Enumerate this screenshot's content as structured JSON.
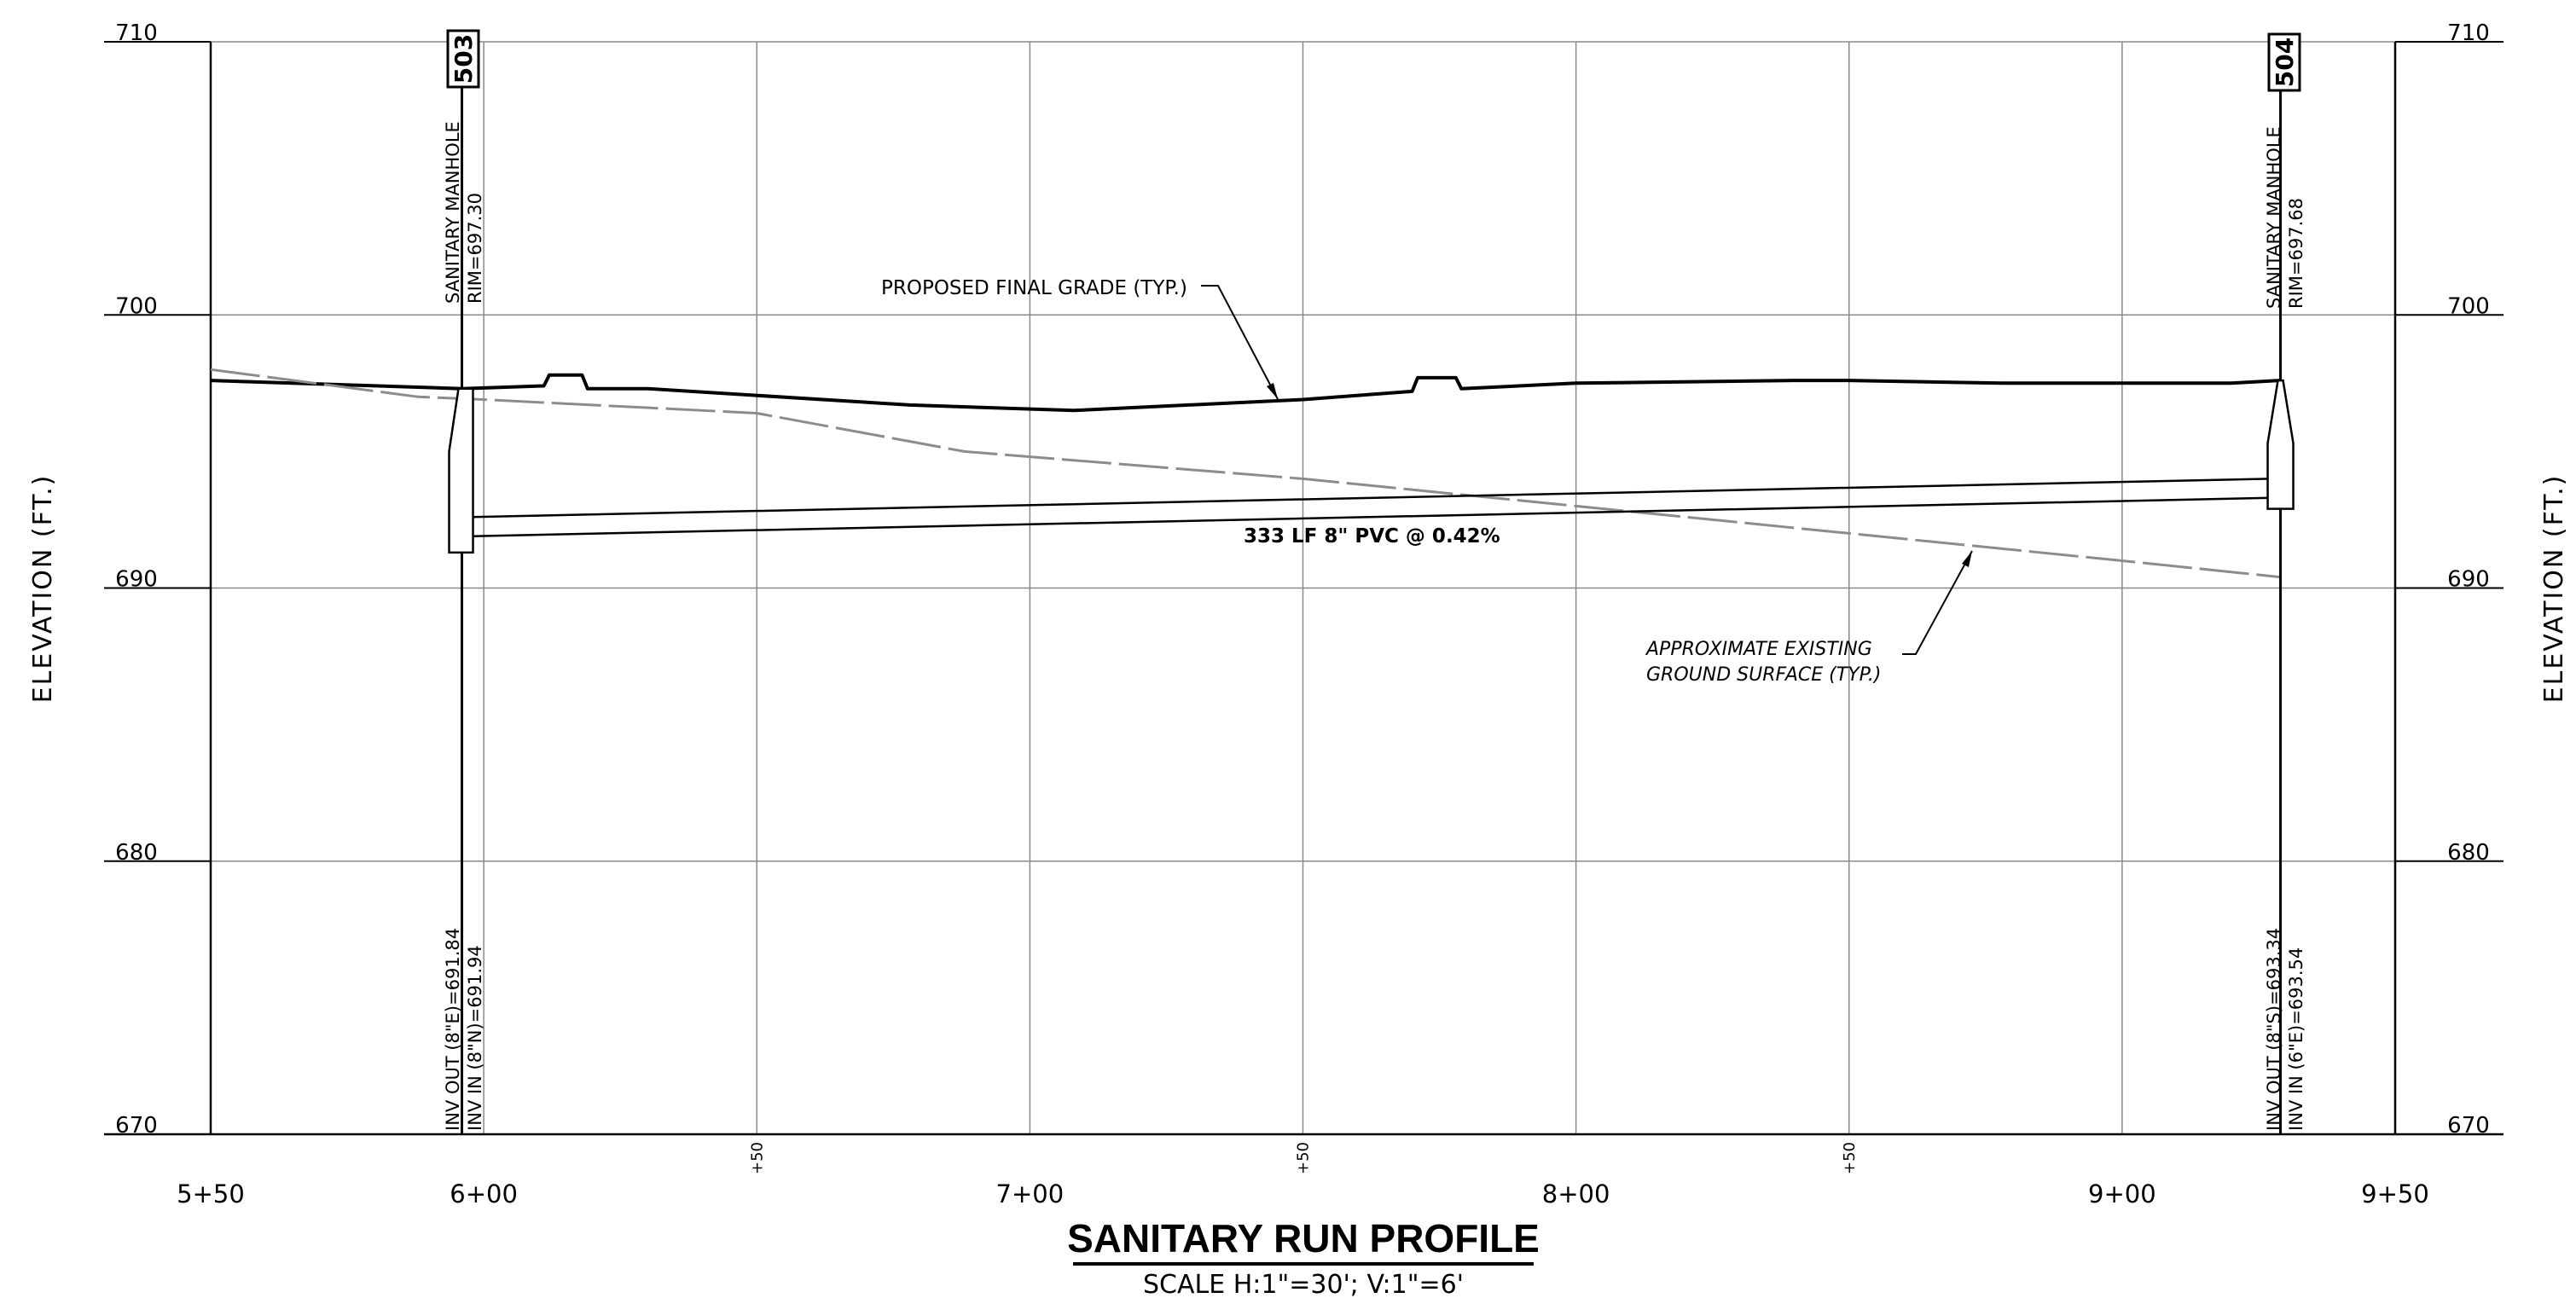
{
  "title": "SANITARY RUN PROFILE",
  "scale": "SCALE  H:1\"=30';  V:1\"=6'",
  "axis": {
    "left_label": "ELEVATION (FT.)",
    "right_label": "ELEVATION (FT.)",
    "elev_ticks": [
      "710",
      "700",
      "690",
      "680",
      "670"
    ],
    "station_labels": [
      "5+50",
      "6+00",
      "7+00",
      "8+00",
      "9+00",
      "9+50"
    ],
    "half_labels": [
      "+50",
      "+50",
      "+50"
    ]
  },
  "manholes": [
    {
      "id": "503",
      "name": "SANITARY MANHOLE",
      "rim": "RIM=697.30",
      "inv_out": "INV OUT (8\"E)=691.84",
      "inv_in": "INV IN (8\"N)=691.94"
    },
    {
      "id": "504",
      "name": "SANITARY MANHOLE",
      "rim": "RIM=697.68",
      "inv_out": "INV OUT (8\"S)=693.34",
      "inv_in": "INV IN (6\"E)=693.54"
    }
  ],
  "annotations": {
    "grade": "PROPOSED FINAL GRADE (TYP.)",
    "pipe": "333 LF 8\" PVC @ 0.42%",
    "existing_1": "APPROXIMATE EXISTING",
    "existing_2": "GROUND SURFACE (TYP.)"
  },
  "chart_data": {
    "type": "line",
    "xlabel": "",
    "ylabel": "ELEVATION (FT.)",
    "xlim": [
      "5+50",
      "9+50"
    ],
    "ylim": [
      670,
      710
    ],
    "series": [
      {
        "name": "PROPOSED FINAL GRADE (TYP.)",
        "points": [
          [
            "5+50",
            697.6
          ],
          [
            "5+96",
            697.3
          ],
          [
            "6+11",
            697.4
          ],
          [
            "6+12",
            697.8
          ],
          [
            "6+18",
            697.8
          ],
          [
            "6+19",
            697.3
          ],
          [
            "6+30",
            697.3
          ],
          [
            "6+78",
            696.7
          ],
          [
            "7+08",
            696.5
          ],
          [
            "7+50",
            696.9
          ],
          [
            "7+70",
            697.2
          ],
          [
            "7+71",
            697.7
          ],
          [
            "7+78",
            697.7
          ],
          [
            "7+79",
            697.3
          ],
          [
            "8+00",
            697.5
          ],
          [
            "8+40",
            697.6
          ],
          [
            "8+50",
            697.6
          ],
          [
            "8+78",
            697.5
          ],
          [
            "9+20",
            697.5
          ],
          [
            "9+29",
            697.6
          ]
        ]
      },
      {
        "name": "APPROXIMATE EXISTING GROUND SURFACE (TYP.)",
        "points": [
          [
            "5+50",
            698.0
          ],
          [
            "5+88",
            697.0
          ],
          [
            "6+00",
            696.9
          ],
          [
            "6+50",
            696.4
          ],
          [
            "6+88",
            695.0
          ],
          [
            "7+50",
            694.0
          ],
          [
            "8+00",
            693.0
          ],
          [
            "8+50",
            692.0
          ],
          [
            "9+00",
            691.0
          ],
          [
            "9+29",
            690.4
          ]
        ]
      },
      {
        "name": "333 LF 8\" PVC @ 0.42% (top)",
        "points": [
          [
            "5+98",
            692.6
          ],
          [
            "9+27",
            694.0
          ]
        ]
      },
      {
        "name": "333 LF 8\" PVC @ 0.42% (invert)",
        "points": [
          [
            "5+98",
            691.9
          ],
          [
            "9+27",
            693.3
          ]
        ]
      }
    ]
  }
}
